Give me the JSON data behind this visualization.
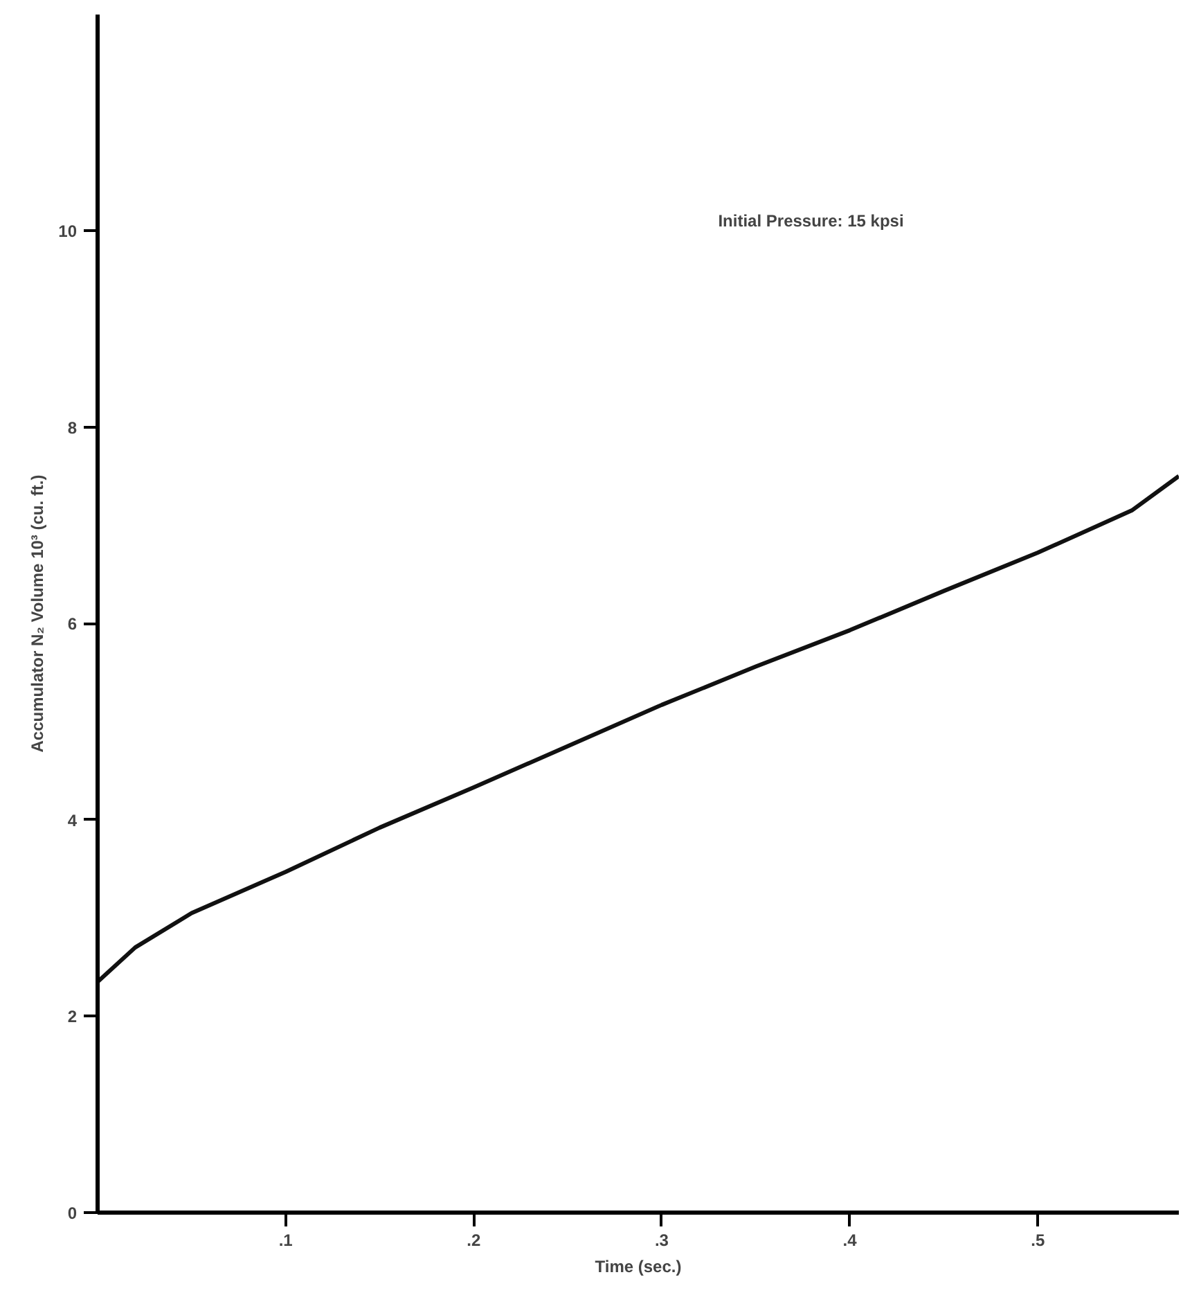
{
  "chart_data": {
    "type": "line",
    "xlabel": "Time (sec.)",
    "ylabel": "Accumulator N₂ Volume 10³ (cu. ft.)",
    "annotations": [
      "Initial Pressure: 15 kpsi"
    ],
    "x": [
      0,
      0.02,
      0.05,
      0.1,
      0.15,
      0.2,
      0.25,
      0.3,
      0.35,
      0.4,
      0.45,
      0.5,
      0.55,
      0.575
    ],
    "series": [
      {
        "color": "#111111",
        "values": [
          2.35,
          2.7,
          3.05,
          3.47,
          3.92,
          4.33,
          4.75,
          5.17,
          5.56,
          5.93,
          6.33,
          6.72,
          7.15,
          7.5
        ]
      }
    ],
    "xlim": [
      0,
      0.575
    ],
    "ylim": [
      0,
      12.2
    ],
    "xticks": [
      {
        "value": 0.1,
        "label": ".1"
      },
      {
        "value": 0.2,
        "label": ".2"
      },
      {
        "value": 0.3,
        "label": ".3"
      },
      {
        "value": 0.4,
        "label": ".4"
      },
      {
        "value": 0.5,
        "label": ".5"
      }
    ],
    "yticks": [
      0,
      2,
      4,
      6,
      8,
      10
    ],
    "grid": false,
    "marker": "none",
    "line_style": "solid"
  }
}
